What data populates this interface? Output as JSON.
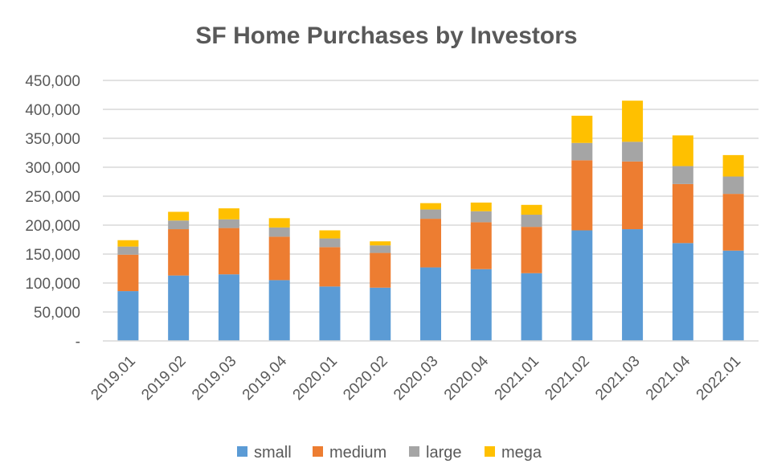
{
  "chart_data": {
    "type": "bar",
    "stacked": true,
    "title": "SF Home Purchases by Investors",
    "xlabel": "",
    "ylabel": "",
    "categories": [
      "2019.01",
      "2019.02",
      "2019.03",
      "2019.04",
      "2020.01",
      "2020.02",
      "2020.03",
      "2020.04",
      "2021.01",
      "2021.02",
      "2021.03",
      "2021.04",
      "2022.01"
    ],
    "series": [
      {
        "name": "small",
        "color": "#5B9BD5",
        "values": [
          86000,
          113000,
          115000,
          105000,
          94000,
          92000,
          127000,
          124000,
          117000,
          191000,
          193000,
          169000,
          156000
        ]
      },
      {
        "name": "medium",
        "color": "#ED7D31",
        "values": [
          63000,
          80000,
          80000,
          75000,
          68000,
          60000,
          84000,
          81000,
          80000,
          121000,
          117000,
          102000,
          98000
        ]
      },
      {
        "name": "large",
        "color": "#A5A5A5",
        "values": [
          14000,
          15000,
          15000,
          16000,
          15000,
          13000,
          16000,
          19000,
          21000,
          30000,
          34000,
          31000,
          30000
        ]
      },
      {
        "name": "mega",
        "color": "#FFC000",
        "values": [
          11000,
          15000,
          19000,
          16000,
          14000,
          7000,
          11000,
          15000,
          17000,
          47000,
          71000,
          53000,
          37000
        ]
      }
    ],
    "ylim": [
      0,
      450000
    ],
    "yticks": [
      0,
      50000,
      100000,
      150000,
      200000,
      250000,
      300000,
      350000,
      400000,
      450000
    ],
    "ytick_labels": [
      "-",
      "50,000",
      "100,000",
      "150,000",
      "200,000",
      "250,000",
      "300,000",
      "350,000",
      "400,000",
      "450,000"
    ],
    "grid": true,
    "legend_position": "bottom"
  }
}
